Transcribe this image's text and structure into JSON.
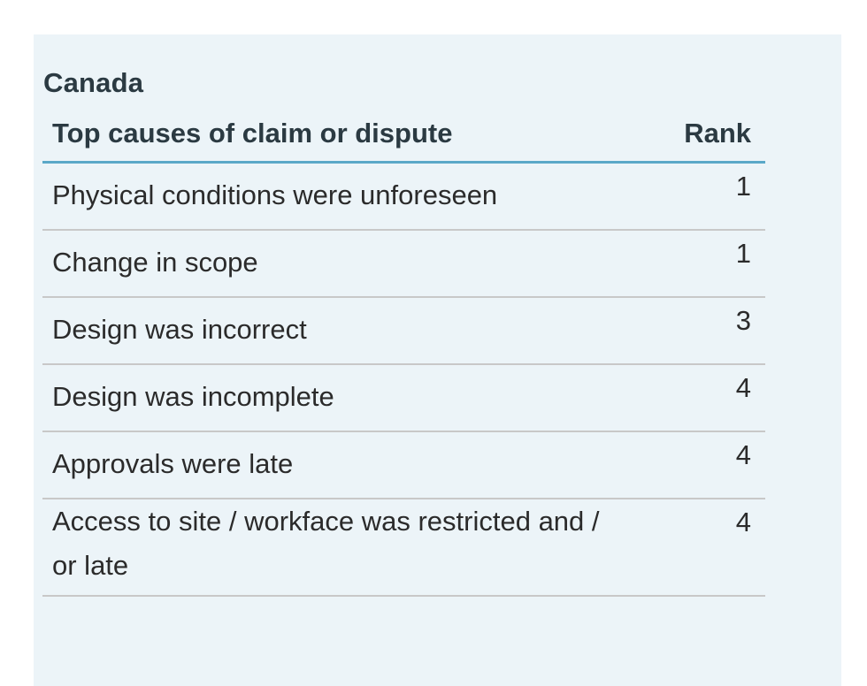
{
  "caption": "Canada",
  "table": {
    "headers": {
      "cause": "Top causes of claim or dispute",
      "rank": "Rank"
    },
    "rows": [
      {
        "cause": "Physical conditions were unforeseen",
        "rank": "1"
      },
      {
        "cause": "Change in scope",
        "rank": "1"
      },
      {
        "cause": "Design was incorrect",
        "rank": "3"
      },
      {
        "cause": "Design was incomplete",
        "rank": "4"
      },
      {
        "cause": "Approvals were late",
        "rank": "4"
      },
      {
        "cause": "Access to site / workface was restricted and / or late",
        "rank": "4"
      }
    ]
  },
  "colors": {
    "card_background": "#ecf4f8",
    "header_rule": "#5aa8c8",
    "row_rule": "#c8c8c8"
  }
}
